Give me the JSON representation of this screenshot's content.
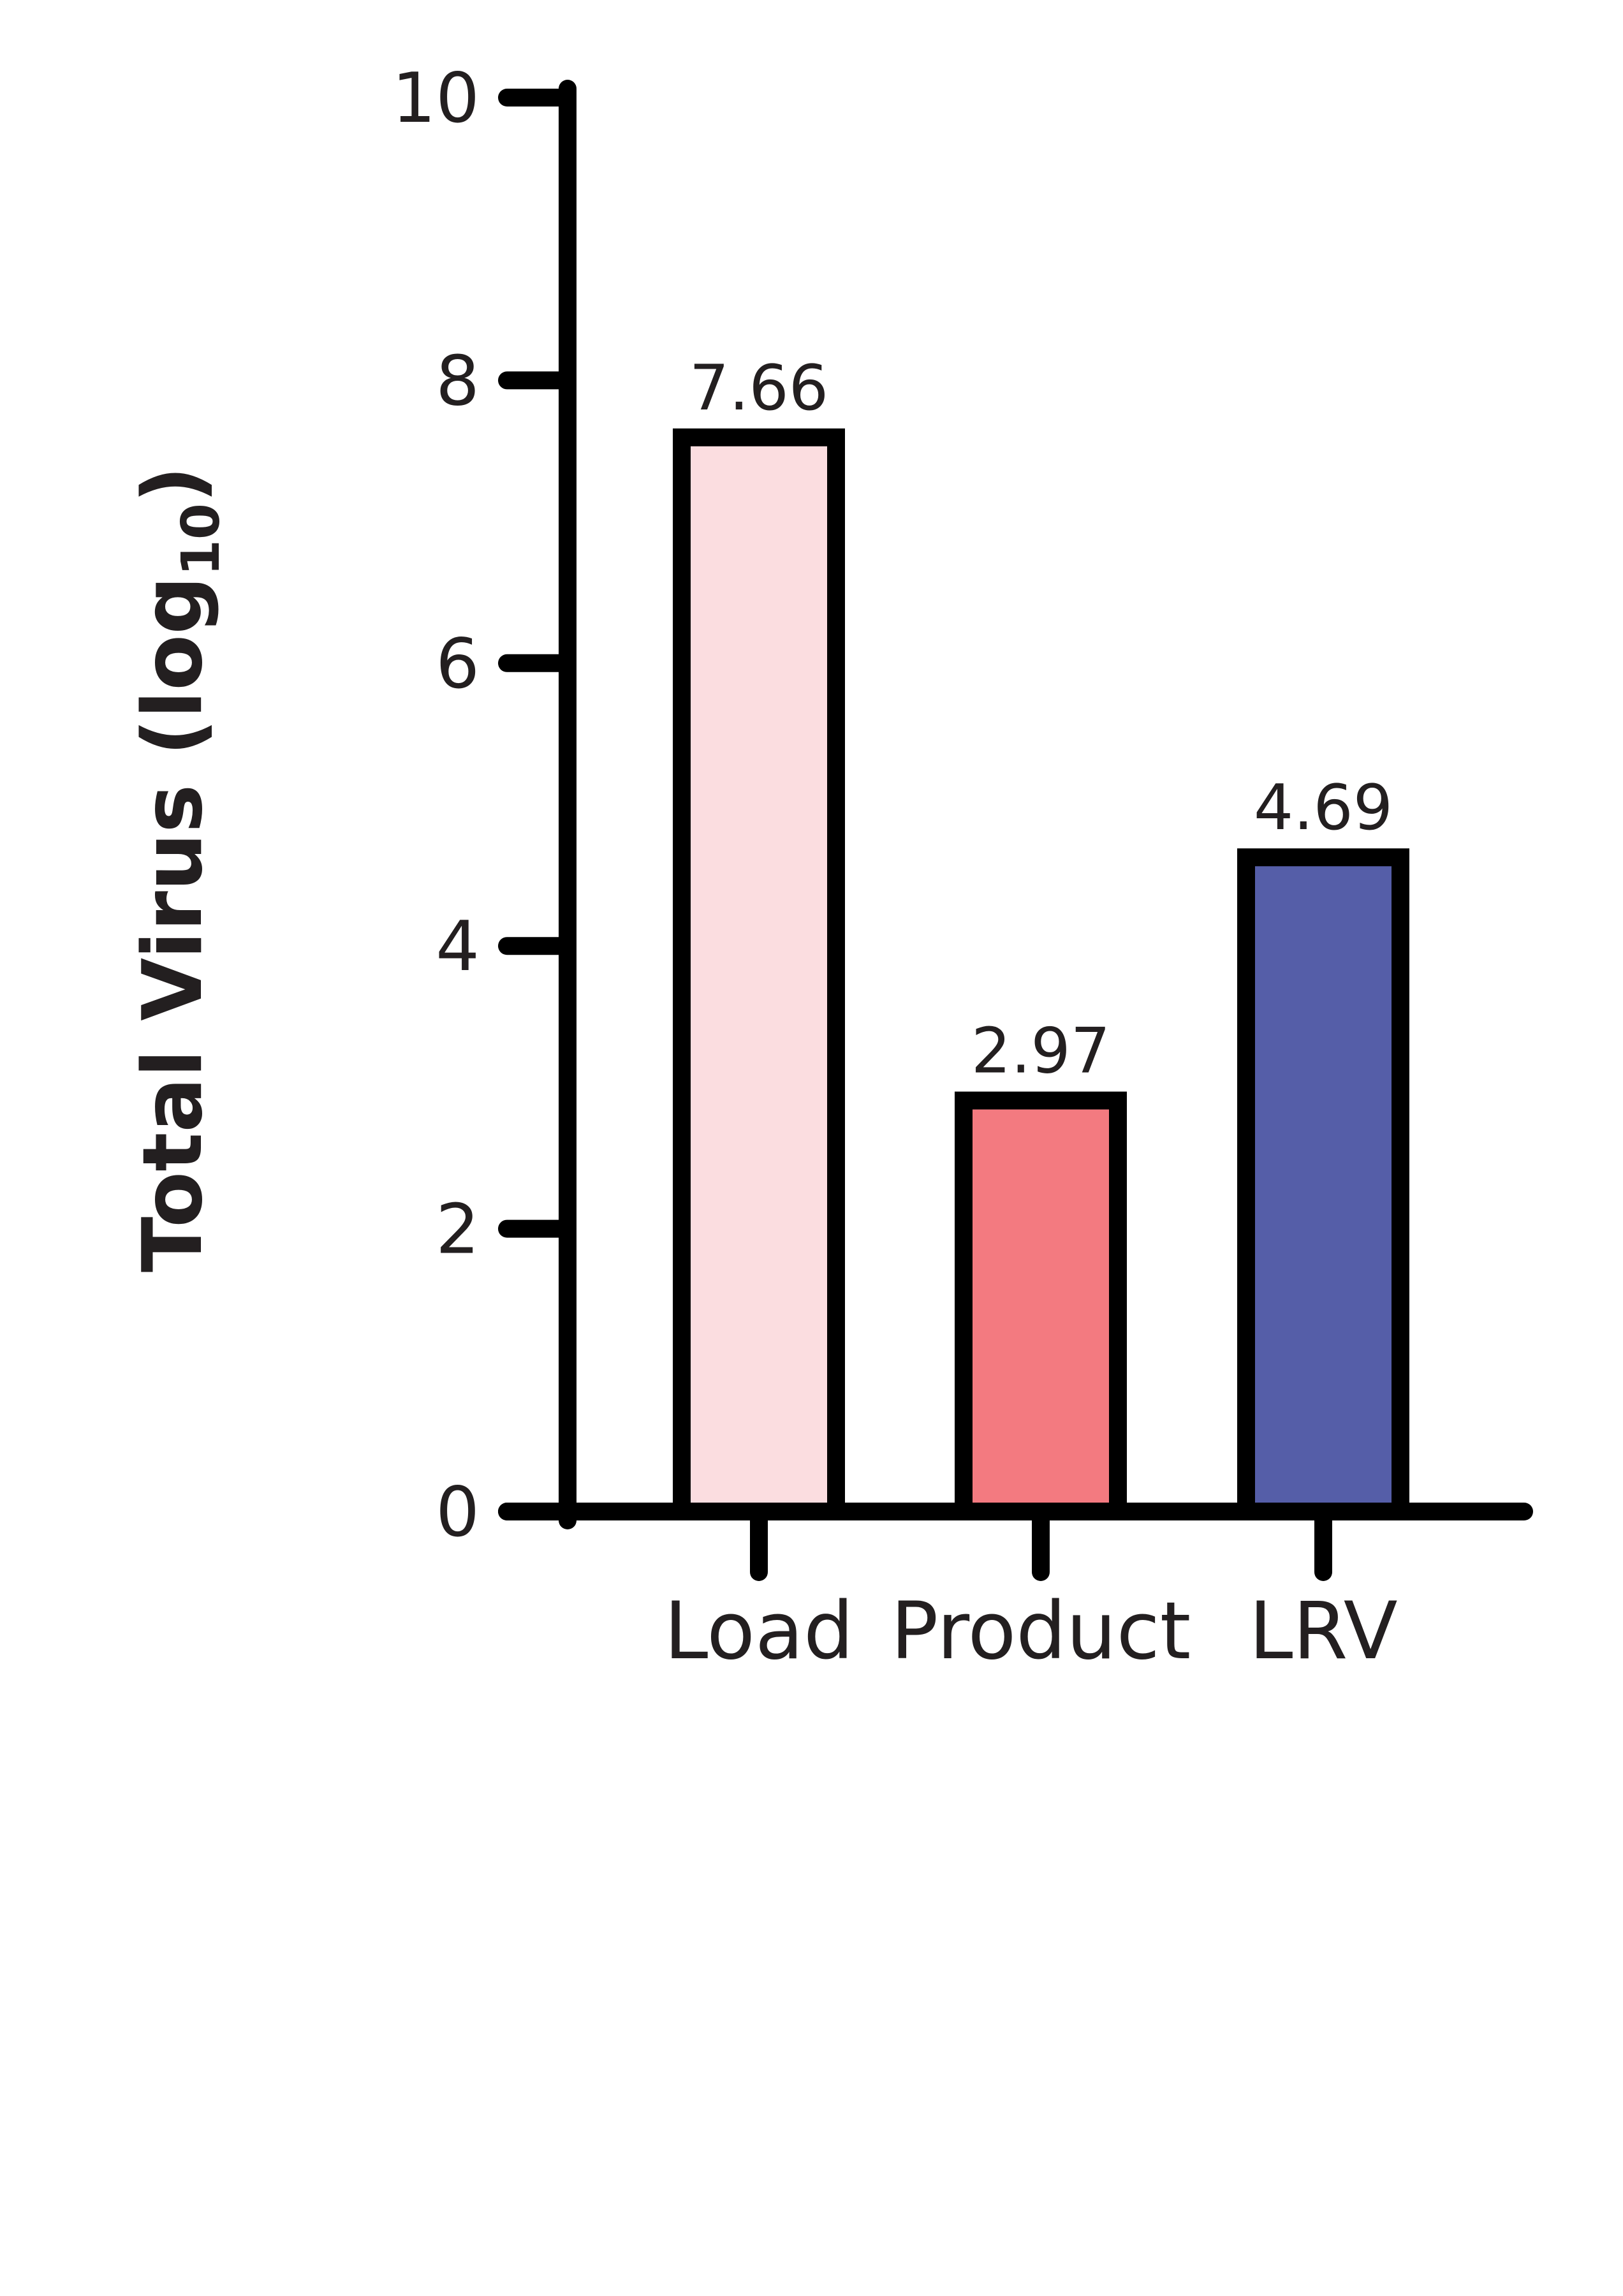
{
  "chart_data": {
    "type": "bar",
    "categories": [
      "Load",
      "Product",
      "LRV"
    ],
    "values": [
      7.66,
      2.97,
      4.69
    ],
    "data_labels": [
      "7.66",
      "2.97",
      "4.69"
    ],
    "colors": [
      "#fbdde0",
      "#f37a80",
      "#555ea8"
    ],
    "outline_color": "#000000",
    "title": "",
    "xlabel": "",
    "ylabel": {
      "main": "Total Virus (log",
      "subscript": "10",
      "close": ")"
    },
    "yticks": [
      0,
      2,
      4,
      6,
      8,
      10
    ],
    "ytick_labels": [
      "0",
      "2",
      "4",
      "6",
      "8",
      "10"
    ],
    "ylim": [
      0,
      10
    ],
    "grid": false,
    "legend": "none"
  }
}
